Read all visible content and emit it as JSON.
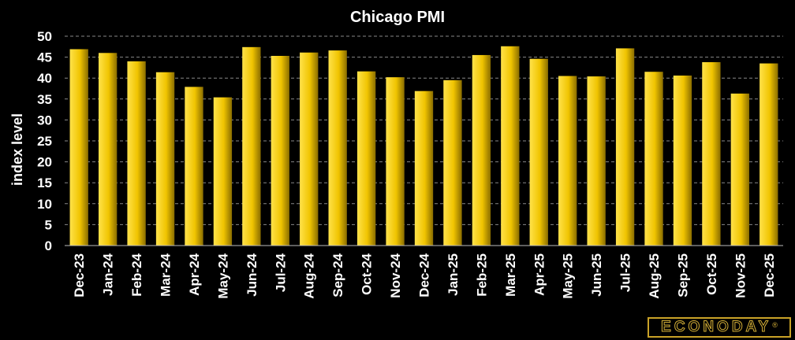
{
  "chart_data": {
    "type": "bar",
    "title": "Chicago PMI",
    "xlabel": "",
    "ylabel": "index level",
    "ylim": [
      0,
      50
    ],
    "yticks": [
      0,
      5,
      10,
      15,
      20,
      25,
      30,
      35,
      40,
      45,
      50
    ],
    "grid": true,
    "categories": [
      "Dec-23",
      "Jan-24",
      "Feb-24",
      "Mar-24",
      "Apr-24",
      "May-24",
      "Jun-24",
      "Jul-24",
      "Aug-24",
      "Sep-24",
      "Oct-24",
      "Nov-24",
      "Dec-24",
      "Jan-25",
      "Feb-25",
      "Mar-25",
      "Apr-25",
      "May-25",
      "Jun-25",
      "Jul-25",
      "Aug-25",
      "Sep-25",
      "Oct-25",
      "Nov-25",
      "Dec-25"
    ],
    "values": [
      46.9,
      46.0,
      44.0,
      41.4,
      37.9,
      35.4,
      47.4,
      45.3,
      46.1,
      46.6,
      41.6,
      40.2,
      36.9,
      39.5,
      45.5,
      47.6,
      44.6,
      40.5,
      40.4,
      47.1,
      41.5,
      40.6,
      43.8,
      36.3,
      43.5
    ],
    "colors": {
      "bar_light": "#ffe24a",
      "bar_dark": "#8a6d00",
      "background": "#000000",
      "grid": "#888888"
    }
  },
  "logo": {
    "text": "ECONODAY",
    "mark": "®"
  }
}
